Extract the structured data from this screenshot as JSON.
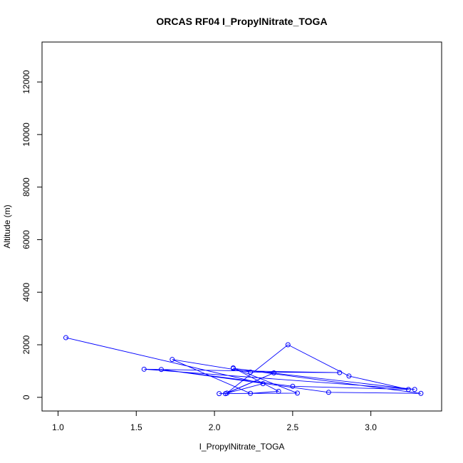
{
  "chart_data": {
    "type": "line",
    "title": "ORCAS RF04 I_PropylNitrate_TOGA",
    "xlabel": "I_PropylNitrate_TOGA",
    "ylabel": "Altitude (m)",
    "xlim": [
      1.0,
      3.35
    ],
    "ylim": [
      0,
      13000
    ],
    "x_ticks": [
      1.0,
      1.5,
      2.0,
      2.5,
      3.0
    ],
    "x_tick_labels": [
      "1.0",
      "1.5",
      "2.0",
      "2.5",
      "3.0"
    ],
    "y_ticks": [
      0,
      2000,
      4000,
      6000,
      8000,
      10000,
      12000
    ],
    "y_tick_labels": [
      "0",
      "2000",
      "4000",
      "6000",
      "8000",
      "10000",
      "12000"
    ],
    "grid": false,
    "legend": "none",
    "series": [
      {
        "color": "#0000ff",
        "markers": "open-circle",
        "points": [
          {
            "x": 1.05,
            "y": 2270
          },
          {
            "x": 2.31,
            "y": 520
          },
          {
            "x": 2.07,
            "y": 140
          },
          {
            "x": 2.38,
            "y": 930
          },
          {
            "x": 2.08,
            "y": 160
          },
          {
            "x": 2.47,
            "y": 2000
          },
          {
            "x": 2.86,
            "y": 810
          },
          {
            "x": 3.24,
            "y": 300
          },
          {
            "x": 2.5,
            "y": 420
          },
          {
            "x": 1.66,
            "y": 1060
          },
          {
            "x": 2.73,
            "y": 190
          },
          {
            "x": 3.32,
            "y": 150
          },
          {
            "x": 2.12,
            "y": 1100
          },
          {
            "x": 3.28,
            "y": 300
          },
          {
            "x": 1.55,
            "y": 1070
          },
          {
            "x": 2.8,
            "y": 940
          },
          {
            "x": 2.23,
            "y": 960
          },
          {
            "x": 1.73,
            "y": 1440
          },
          {
            "x": 2.23,
            "y": 150
          },
          {
            "x": 2.41,
            "y": 230
          },
          {
            "x": 2.12,
            "y": 1120
          },
          {
            "x": 2.53,
            "y": 160
          },
          {
            "x": 2.03,
            "y": 140
          }
        ]
      }
    ]
  }
}
